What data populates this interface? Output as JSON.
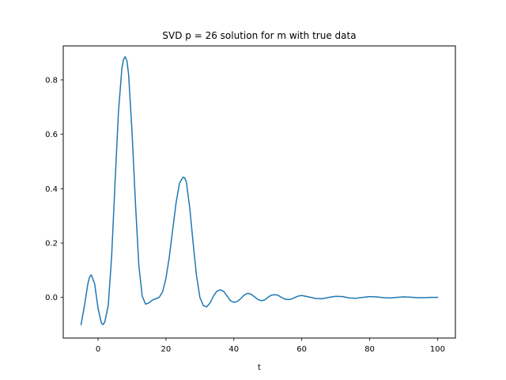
{
  "chart_data": {
    "type": "line",
    "title": "SVD p = 26 solution for m with true data",
    "xlabel": "t",
    "ylabel": "",
    "xlim": [
      -10.25,
      105.25
    ],
    "ylim": [
      -0.1495,
      0.925
    ],
    "xticks": [
      0,
      20,
      40,
      60,
      80,
      100
    ],
    "yticks": [
      0.0,
      0.2,
      0.4,
      0.6,
      0.8
    ],
    "xtick_labels": [
      "0",
      "20",
      "40",
      "60",
      "80",
      "100"
    ],
    "ytick_labels": [
      "0.0",
      "0.2",
      "0.4",
      "0.6",
      "0.8"
    ],
    "grid": false,
    "legend": "none",
    "series": [
      {
        "color": "#1f77b4",
        "x": [
          -5.0,
          -4.0,
          -3.0,
          -2.5,
          -2.0,
          -1.0,
          0.0,
          1.0,
          1.5,
          2.0,
          3.0,
          4.0,
          5.0,
          6.0,
          7.0,
          7.5,
          8.0,
          8.5,
          9.0,
          10.0,
          11.0,
          12.0,
          13.0,
          14.0,
          15.0,
          16.0,
          17.0,
          18.0,
          19.0,
          20.0,
          21.0,
          22.0,
          23.0,
          24.0,
          25.0,
          25.5,
          26.0,
          27.0,
          28.0,
          29.0,
          30.0,
          31.0,
          32.0,
          33.0,
          34.0,
          35.0,
          36.0,
          37.0,
          38.0,
          39.0,
          40.0,
          41.0,
          42.0,
          43.0,
          44.0,
          45.0,
          46.0,
          47.0,
          48.0,
          49.0,
          50.0,
          51.0,
          52.0,
          53.0,
          54.0,
          55.0,
          56.0,
          57.0,
          58.0,
          59.0,
          60.0,
          62.0,
          64.0,
          66.0,
          68.0,
          70.0,
          72.0,
          74.0,
          76.0,
          78.0,
          80.0,
          82.0,
          84.0,
          86.0,
          88.0,
          90.0,
          92.0,
          94.0,
          96.0,
          98.0,
          100.0
        ],
        "y": [
          -0.1,
          -0.03,
          0.05,
          0.075,
          0.083,
          0.05,
          -0.04,
          -0.095,
          -0.1,
          -0.09,
          -0.03,
          0.15,
          0.42,
          0.68,
          0.84,
          0.875,
          0.885,
          0.87,
          0.82,
          0.61,
          0.35,
          0.12,
          0.005,
          -0.025,
          -0.02,
          -0.01,
          -0.005,
          0.0,
          0.02,
          0.07,
          0.15,
          0.25,
          0.35,
          0.42,
          0.442,
          0.44,
          0.425,
          0.33,
          0.2,
          0.08,
          0.0,
          -0.03,
          -0.035,
          -0.02,
          0.005,
          0.023,
          0.028,
          0.022,
          0.005,
          -0.012,
          -0.018,
          -0.015,
          -0.005,
          0.008,
          0.015,
          0.012,
          0.003,
          -0.007,
          -0.012,
          -0.01,
          0.0,
          0.008,
          0.01,
          0.008,
          0.0,
          -0.006,
          -0.008,
          -0.006,
          0.0,
          0.005,
          0.007,
          0.002,
          -0.004,
          -0.005,
          0.0,
          0.004,
          0.003,
          -0.002,
          -0.003,
          0.0,
          0.003,
          0.002,
          -0.001,
          -0.002,
          0.0,
          0.002,
          0.001,
          -0.001,
          -0.001,
          0.0,
          0.0
        ]
      }
    ]
  }
}
